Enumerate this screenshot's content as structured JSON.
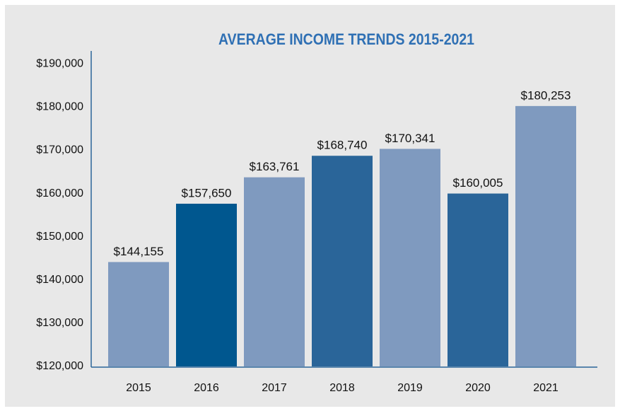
{
  "chart_data": {
    "type": "bar",
    "title": "AVERAGE INCOME TRENDS 2015-2021",
    "categories": [
      "2015",
      "2016",
      "2017",
      "2018",
      "2019",
      "2020",
      "2021"
    ],
    "values": [
      144155,
      157650,
      163761,
      168740,
      170341,
      160005,
      180253
    ],
    "value_labels": [
      "$144,155",
      "$157,650",
      "$163,761",
      "$168,740",
      "$170,341",
      "$160,005",
      "$180,253"
    ],
    "colors": [
      "#7f9abf",
      "#00578f",
      "#7f9abf",
      "#2a6599",
      "#7f9abf",
      "#2a6599",
      "#7f9abf"
    ],
    "ylim": [
      120000,
      193000
    ],
    "yticks": [
      {
        "value": 120000,
        "label": "$120,000"
      },
      {
        "value": 130000,
        "label": "$130,000"
      },
      {
        "value": 140000,
        "label": "$140,000"
      },
      {
        "value": 150000,
        "label": "$150,000"
      },
      {
        "value": 160000,
        "label": "$160,000"
      },
      {
        "value": 170000,
        "label": "$170,000"
      },
      {
        "value": 180000,
        "label": "$180,000"
      },
      {
        "value": 190000,
        "label": "$190,000"
      }
    ],
    "grid": false
  }
}
